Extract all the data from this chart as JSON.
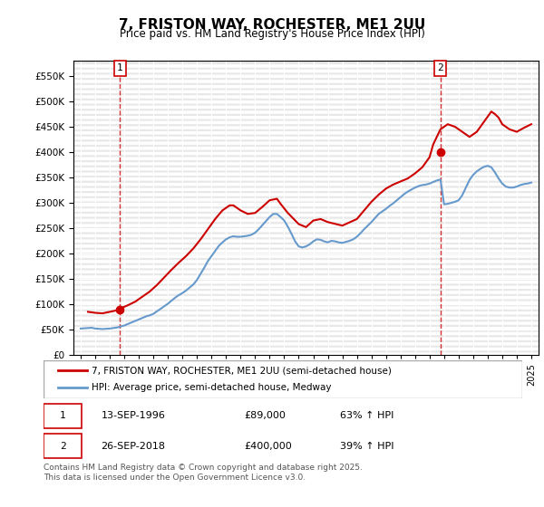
{
  "title": "7, FRISTON WAY, ROCHESTER, ME1 2UU",
  "subtitle": "Price paid vs. HM Land Registry's House Price Index (HPI)",
  "legend_line1": "7, FRISTON WAY, ROCHESTER, ME1 2UU (semi-detached house)",
  "legend_line2": "HPI: Average price, semi-detached house, Medway",
  "footnote": "Contains HM Land Registry data © Crown copyright and database right 2025.\nThis data is licensed under the Open Government Licence v3.0.",
  "purchase1_label": "1",
  "purchase1_date": "13-SEP-1996",
  "purchase1_price": "£89,000",
  "purchase1_hpi": "63% ↑ HPI",
  "purchase2_label": "2",
  "purchase2_date": "26-SEP-2018",
  "purchase2_price": "£400,000",
  "purchase2_hpi": "39% ↑ HPI",
  "sale_color": "#cc0000",
  "hpi_color": "#6699cc",
  "vline_color": "#cc0000",
  "marker1_x": 1996.71,
  "marker1_y": 89000,
  "marker2_x": 2018.74,
  "marker2_y": 400000,
  "ylim": [
    0,
    580000
  ],
  "xlim": [
    1993.5,
    2025.5
  ],
  "yticks": [
    0,
    50000,
    100000,
    150000,
    200000,
    250000,
    300000,
    350000,
    400000,
    450000,
    500000,
    550000
  ],
  "xticks": [
    1994,
    1995,
    1996,
    1997,
    1998,
    1999,
    2000,
    2001,
    2002,
    2003,
    2004,
    2005,
    2006,
    2007,
    2008,
    2009,
    2010,
    2011,
    2012,
    2013,
    2014,
    2015,
    2016,
    2017,
    2018,
    2019,
    2020,
    2021,
    2022,
    2023,
    2024,
    2025
  ],
  "hpi_data": {
    "years": [
      1994.0,
      1994.25,
      1994.5,
      1994.75,
      1995.0,
      1995.25,
      1995.5,
      1995.75,
      1996.0,
      1996.25,
      1996.5,
      1996.75,
      1997.0,
      1997.25,
      1997.5,
      1997.75,
      1998.0,
      1998.25,
      1998.5,
      1998.75,
      1999.0,
      1999.25,
      1999.5,
      1999.75,
      2000.0,
      2000.25,
      2000.5,
      2000.75,
      2001.0,
      2001.25,
      2001.5,
      2001.75,
      2002.0,
      2002.25,
      2002.5,
      2002.75,
      2003.0,
      2003.25,
      2003.5,
      2003.75,
      2004.0,
      2004.25,
      2004.5,
      2004.75,
      2005.0,
      2005.25,
      2005.5,
      2005.75,
      2006.0,
      2006.25,
      2006.5,
      2006.75,
      2007.0,
      2007.25,
      2007.5,
      2007.75,
      2008.0,
      2008.25,
      2008.5,
      2008.75,
      2009.0,
      2009.25,
      2009.5,
      2009.75,
      2010.0,
      2010.25,
      2010.5,
      2010.75,
      2011.0,
      2011.25,
      2011.5,
      2011.75,
      2012.0,
      2012.25,
      2012.5,
      2012.75,
      2013.0,
      2013.25,
      2013.5,
      2013.75,
      2014.0,
      2014.25,
      2014.5,
      2014.75,
      2015.0,
      2015.25,
      2015.5,
      2015.75,
      2016.0,
      2016.25,
      2016.5,
      2016.75,
      2017.0,
      2017.25,
      2017.5,
      2017.75,
      2018.0,
      2018.25,
      2018.5,
      2018.75,
      2019.0,
      2019.25,
      2019.5,
      2019.75,
      2020.0,
      2020.25,
      2020.5,
      2020.75,
      2021.0,
      2021.25,
      2021.5,
      2021.75,
      2022.0,
      2022.25,
      2022.5,
      2022.75,
      2023.0,
      2023.25,
      2023.5,
      2023.75,
      2024.0,
      2024.25,
      2024.5,
      2024.75,
      2025.0
    ],
    "values": [
      52000,
      52500,
      53000,
      53500,
      52000,
      51500,
      51000,
      51500,
      52000,
      53000,
      54000,
      56000,
      58000,
      61000,
      64000,
      67000,
      70000,
      73000,
      76000,
      78000,
      81000,
      86000,
      91000,
      96000,
      101000,
      107000,
      113000,
      118000,
      122000,
      127000,
      133000,
      139000,
      148000,
      160000,
      172000,
      185000,
      195000,
      205000,
      215000,
      222000,
      228000,
      232000,
      234000,
      233000,
      233000,
      234000,
      235000,
      237000,
      241000,
      248000,
      256000,
      264000,
      272000,
      278000,
      278000,
      272000,
      265000,
      253000,
      239000,
      224000,
      214000,
      212000,
      214000,
      218000,
      224000,
      228000,
      227000,
      224000,
      222000,
      225000,
      224000,
      222000,
      221000,
      223000,
      225000,
      228000,
      233000,
      240000,
      248000,
      255000,
      262000,
      270000,
      278000,
      283000,
      288000,
      294000,
      299000,
      305000,
      311000,
      317000,
      322000,
      326000,
      330000,
      333000,
      335000,
      336000,
      338000,
      341000,
      344000,
      346000,
      297000,
      298000,
      300000,
      302000,
      305000,
      315000,
      330000,
      345000,
      355000,
      362000,
      367000,
      371000,
      373000,
      370000,
      360000,
      348000,
      338000,
      332000,
      330000,
      330000,
      332000,
      335000,
      337000,
      338000,
      340000
    ]
  },
  "property_data": {
    "years": [
      1994.5,
      1995.0,
      1995.5,
      1996.0,
      1996.5,
      1996.75,
      1997.25,
      1997.75,
      1998.25,
      1998.75,
      1999.25,
      1999.75,
      2000.25,
      2000.75,
      2001.25,
      2001.75,
      2002.25,
      2002.75,
      2003.25,
      2003.75,
      2004.25,
      2004.5,
      2005.0,
      2005.5,
      2006.0,
      2006.5,
      2007.0,
      2007.5,
      2007.75,
      2008.25,
      2009.0,
      2009.5,
      2010.0,
      2010.5,
      2011.0,
      2012.0,
      2013.0,
      2013.5,
      2014.0,
      2014.5,
      2015.0,
      2015.5,
      2016.0,
      2016.5,
      2017.0,
      2017.5,
      2018.0,
      2018.25,
      2018.75,
      2019.25,
      2019.75,
      2020.25,
      2020.75,
      2021.25,
      2021.75,
      2022.25,
      2022.5,
      2022.75,
      2023.0,
      2023.5,
      2024.0,
      2024.5,
      2025.0
    ],
    "values": [
      85000,
      83000,
      82000,
      85000,
      88000,
      92000,
      98000,
      105000,
      115000,
      125000,
      138000,
      153000,
      168000,
      182000,
      195000,
      210000,
      228000,
      248000,
      268000,
      285000,
      295000,
      295000,
      285000,
      278000,
      280000,
      292000,
      305000,
      308000,
      298000,
      280000,
      258000,
      252000,
      265000,
      268000,
      262000,
      255000,
      268000,
      285000,
      302000,
      316000,
      328000,
      336000,
      342000,
      348000,
      358000,
      370000,
      390000,
      415000,
      445000,
      455000,
      450000,
      440000,
      430000,
      440000,
      460000,
      480000,
      475000,
      468000,
      455000,
      445000,
      440000,
      448000,
      455000
    ]
  }
}
